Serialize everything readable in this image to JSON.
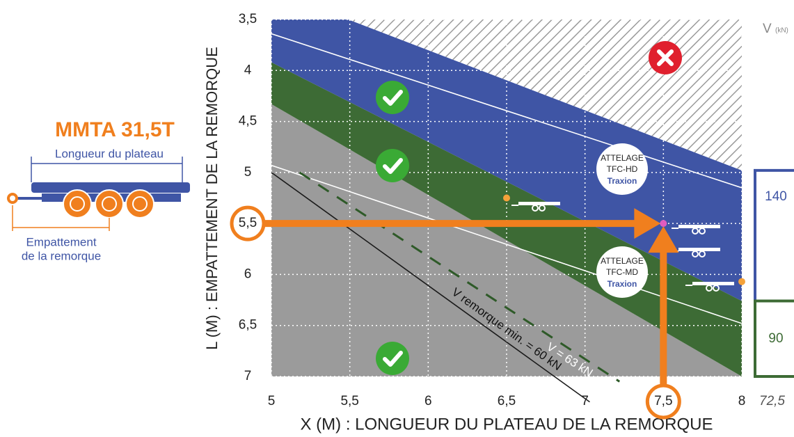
{
  "left_panel": {
    "title": "MMTA 31,5T",
    "length_label": "Longueur du plateau",
    "wheelbase_label": [
      "Empattement",
      "de la remorque"
    ]
  },
  "chart_data": {
    "type": "zone",
    "xlabel": "X (M) : LONGUEUR DU PLATEAU DE LA REMORQUE",
    "ylabel": "L (M) : EMPATTEMENT DE LA REMORQUE",
    "xlim": [
      5,
      8
    ],
    "ylim": [
      3.5,
      7
    ],
    "y_inverted": true,
    "grid": true,
    "xticks": [
      5,
      {
        "value": 5.5,
        "label": "5,5"
      },
      6,
      {
        "value": 6.5,
        "label": "6,5"
      },
      7,
      {
        "value": 7.5,
        "label": "7,5"
      },
      8
    ],
    "yticks": [
      {
        "value": 3.5,
        "label": "3,5"
      },
      4,
      {
        "value": 4.5,
        "label": "4,5"
      },
      5,
      {
        "value": 5.5,
        "label": "5,5"
      },
      6,
      {
        "value": 6.5,
        "label": "6,5"
      },
      7
    ],
    "zones": [
      {
        "color": "#9b9b9b",
        "x": [
          5,
          8,
          5
        ],
        "y": [
          4.33,
          7,
          7
        ]
      },
      {
        "color": "#3d6b35",
        "x": [
          5,
          8,
          8,
          5
        ],
        "y": [
          3.92,
          6.26,
          7,
          4.33
        ]
      },
      {
        "color": "#3f55a5",
        "x": [
          5,
          5.49,
          8,
          8,
          5
        ],
        "y": [
          3.5,
          3.5,
          4.98,
          6.26,
          3.92
        ]
      },
      {
        "color": "hatch",
        "x": [
          5.49,
          8,
          8
        ],
        "y": [
          3.5,
          3.5,
          4.98
        ]
      }
    ],
    "lines": [
      {
        "color": "#ffffff",
        "x": [
          5,
          8
        ],
        "y": [
          3.64,
          5.15
        ]
      },
      {
        "color": "#ffffff",
        "x": [
          5,
          8
        ],
        "y": [
          4.93,
          6.48
        ]
      },
      {
        "color": "#1a1a1a",
        "x": [
          5,
          7.03
        ],
        "y": [
          5.0,
          7.25
        ],
        "label": "V remorque min. = 60 kN"
      },
      {
        "color": "#2e5a28",
        "dashed": true,
        "x": [
          5.18,
          7.22
        ],
        "y": [
          5.0,
          7.05
        ],
        "label": "V = 63 kN"
      }
    ],
    "points": [
      {
        "x": 6.5,
        "y": 5.25,
        "color": "#f5a23a"
      },
      {
        "x": 7.5,
        "y": 5.5,
        "color": "#e05bbf",
        "highlight": true
      },
      {
        "x": 8,
        "y": 6.07,
        "color": "#f5a23a"
      }
    ],
    "couplings": [
      {
        "lines": [
          "ATTELAGE",
          "TFC-HD"
        ],
        "brand": "Traxion"
      },
      {
        "lines": [
          "ATTELAGE",
          "TFC-MD"
        ],
        "brand": "Traxion"
      }
    ],
    "v_scale": {
      "title": "V",
      "unit": "(kN)",
      "values": [
        140,
        90,
        72.5
      ],
      "value_labels": [
        "140",
        "90",
        "72,5"
      ],
      "colors": [
        "#3f55a5",
        "#3d6b35"
      ]
    }
  }
}
